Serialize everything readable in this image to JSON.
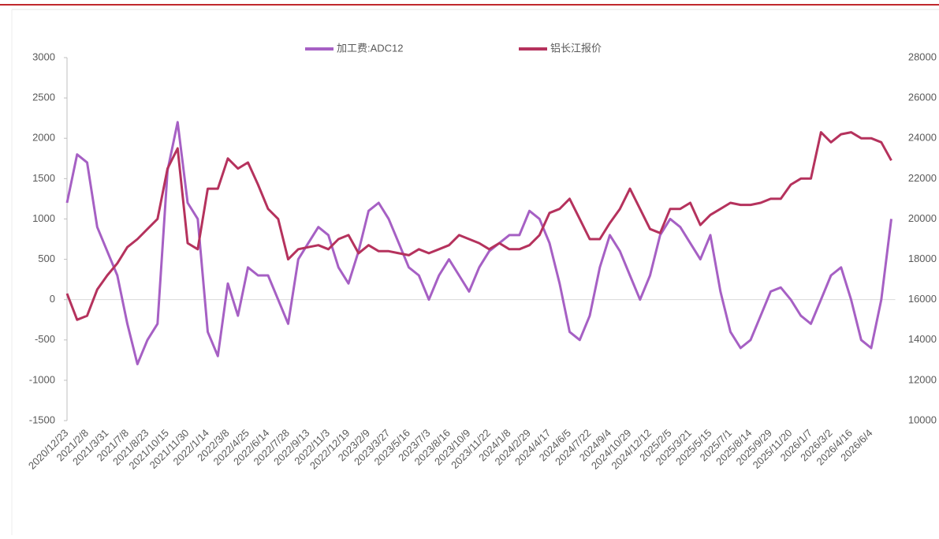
{
  "chart_data": {
    "type": "line",
    "categories": [
      "2020/12/23",
      null,
      "2021/2/8",
      null,
      "2021/3/31",
      null,
      "2021/7/8",
      null,
      "2021/8/23",
      null,
      "2021/10/15",
      null,
      "2021/11/30",
      null,
      "2022/1/14",
      null,
      "2022/3/8",
      null,
      "2022/4/25",
      null,
      "2022/6/14",
      null,
      "2022/7/28",
      null,
      "2022/9/13",
      null,
      "2022/11/3",
      null,
      "2022/12/19",
      null,
      "2023/2/9",
      null,
      "2023/3/27",
      null,
      "2023/5/16",
      null,
      "2023/7/3",
      null,
      "2023/8/16",
      null,
      "2023/10/9",
      null,
      "2023/11/22",
      null,
      "2024/1/8",
      null,
      "2024/2/29",
      null,
      "2024/4/17",
      null,
      "2024/6/5",
      null,
      "2024/7/22",
      null,
      "2024/9/4",
      null,
      "2024/10/29",
      null,
      "2024/12/12",
      null,
      "2025/2/5",
      null,
      "2025/3/21",
      null,
      "2025/5/15",
      null,
      "2025/7/1",
      null,
      "2025/8/14",
      null,
      "2025/9/29",
      null,
      "2025/11/20",
      null,
      "2026/1/7",
      null,
      "2026/3/2",
      null,
      "2026/4/16",
      null,
      "2026/6/4",
      null,
      null
    ],
    "series": [
      {
        "name": "加工费:ADC12",
        "color": "#a660c4",
        "axis": "y",
        "values": [
          1200,
          1800,
          1700,
          900,
          600,
          300,
          -300,
          -800,
          -500,
          -300,
          1600,
          2200,
          1200,
          1000,
          -400,
          -700,
          200,
          -200,
          400,
          300,
          300,
          0,
          -300,
          500,
          700,
          900,
          800,
          400,
          200,
          600,
          1100,
          1200,
          1000,
          700,
          400,
          300,
          0,
          300,
          500,
          300,
          100,
          400,
          600,
          700,
          800,
          800,
          1100,
          1000,
          700,
          200,
          -400,
          -500,
          -200,
          400,
          800,
          600,
          300,
          0,
          300,
          800,
          1000,
          900,
          700,
          500,
          800,
          100,
          -400,
          -600,
          -500,
          -200,
          100,
          150,
          0,
          -200,
          -300,
          0,
          300,
          400,
          0,
          -500,
          -600,
          0,
          1000
        ]
      },
      {
        "name": "铝长江报价",
        "color": "#b5325d",
        "axis": "y2",
        "values": [
          16300,
          15000,
          15200,
          16500,
          17200,
          17800,
          18600,
          19000,
          19500,
          20000,
          22500,
          23500,
          18800,
          18500,
          21500,
          21500,
          23000,
          22500,
          22800,
          21700,
          20500,
          20000,
          18000,
          18500,
          18600,
          18700,
          18500,
          19000,
          19200,
          18300,
          18700,
          18400,
          18400,
          18300,
          18200,
          18500,
          18300,
          18500,
          18700,
          19200,
          19000,
          18800,
          18500,
          18800,
          18500,
          18500,
          18700,
          19200,
          20300,
          20500,
          21000,
          20000,
          19000,
          19000,
          19800,
          20500,
          21500,
          20500,
          19500,
          19300,
          20500,
          20500,
          20800,
          19700,
          20200,
          20500,
          20800,
          20700,
          20700,
          20800,
          21000,
          21000,
          21700,
          22000,
          22000,
          24300,
          23800,
          24200,
          24300,
          24000,
          24000,
          23800,
          22900
        ]
      }
    ],
    "ylim": [
      -1500,
      3000
    ],
    "yticks": [
      -1500,
      -1000,
      -500,
      0,
      500,
      1000,
      1500,
      2000,
      2500,
      3000
    ],
    "y2lim": [
      10000,
      28000
    ],
    "y2ticks": [
      10000,
      12000,
      14000,
      16000,
      18000,
      20000,
      22000,
      24000,
      26000,
      28000
    ],
    "legend": "top",
    "grid": false
  }
}
